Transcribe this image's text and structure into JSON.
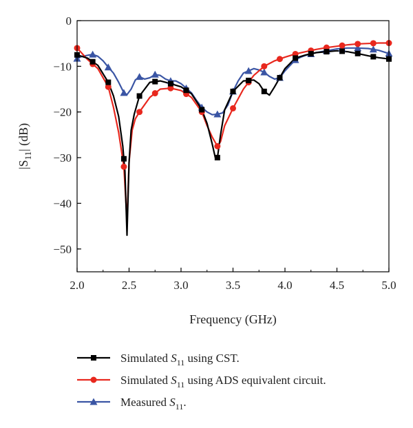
{
  "chart_data": {
    "type": "line",
    "xlabel": "Frequency (GHz)",
    "ylabel": "|S11| (dB)",
    "xlim": [
      2.0,
      5.0
    ],
    "ylim": [
      -55,
      0
    ],
    "xticks": [
      "2.0",
      "2.5",
      "3.0",
      "3.5",
      "4.0",
      "4.5",
      "5.0"
    ],
    "yticks": [
      "0",
      "−10",
      "−20",
      "−30",
      "−40",
      "−50"
    ],
    "grid": false,
    "legend_position": "bottom",
    "series": [
      {
        "name": "Simulated S11 using CST.",
        "legend_prefix": "Simulated ",
        "legend_sub": "11",
        "legend_suffix": " using CST.",
        "color": "#000000",
        "marker": "square",
        "x": [
          2.0,
          2.1,
          2.2,
          2.3,
          2.35,
          2.4,
          2.44,
          2.46,
          2.48,
          2.5,
          2.52,
          2.55,
          2.6,
          2.7,
          2.8,
          2.9,
          3.0,
          3.1,
          3.2,
          3.25,
          3.3,
          3.33,
          3.35,
          3.38,
          3.42,
          3.5,
          3.6,
          3.7,
          3.75,
          3.8,
          3.85,
          3.9,
          4.0,
          4.1,
          4.2,
          4.3,
          4.4,
          4.5,
          4.6,
          4.7,
          4.8,
          4.9,
          5.0
        ],
        "y": [
          -7.5,
          -8.2,
          -9.8,
          -13.5,
          -16.5,
          -21,
          -27.5,
          -33,
          -47,
          -31,
          -24,
          -20.5,
          -16.5,
          -13.5,
          -13.2,
          -13.8,
          -14.5,
          -16,
          -19.5,
          -22.5,
          -27,
          -30,
          -30,
          -25,
          -19.5,
          -15.5,
          -13.2,
          -13,
          -13.8,
          -15.5,
          -16.3,
          -14.5,
          -10.5,
          -8.2,
          -7.5,
          -7,
          -6.8,
          -6.6,
          -6.8,
          -7.2,
          -7.7,
          -8.1,
          -8.4
        ],
        "marker_x": [
          2.0,
          2.15,
          2.3,
          2.45,
          2.6,
          2.75,
          2.9,
          3.05,
          3.2,
          3.35,
          3.5,
          3.65,
          3.8,
          3.95,
          4.1,
          4.25,
          4.4,
          4.55,
          4.7,
          4.85,
          5.0
        ]
      },
      {
        "name": "Simulated S11 using ADS equivalent circuit.",
        "legend_prefix": "Simulated ",
        "legend_sub": "11",
        "legend_suffix": " using ADS equivalent circuit.",
        "color": "#e8281e",
        "marker": "circle",
        "x": [
          2.0,
          2.1,
          2.2,
          2.3,
          2.35,
          2.4,
          2.45,
          2.48,
          2.5,
          2.53,
          2.56,
          2.6,
          2.7,
          2.8,
          2.9,
          3.0,
          3.1,
          3.2,
          3.25,
          3.3,
          3.35,
          3.38,
          3.42,
          3.5,
          3.6,
          3.7,
          3.8,
          3.9,
          4.0,
          4.1,
          4.2,
          4.3,
          4.4,
          4.5,
          4.6,
          4.7,
          4.8,
          4.9,
          5.0
        ],
        "y": [
          -6,
          -8.5,
          -10.5,
          -14.5,
          -19,
          -24.5,
          -32,
          -44,
          -31,
          -24,
          -21.5,
          -20,
          -16.8,
          -15,
          -14.8,
          -15.3,
          -16.8,
          -20,
          -23,
          -25.5,
          -27.5,
          -26.5,
          -23,
          -19.2,
          -15,
          -12,
          -10,
          -8.8,
          -8,
          -7.3,
          -6.8,
          -6.3,
          -5.9,
          -5.6,
          -5.3,
          -5.1,
          -5,
          -4.9,
          -4.9
        ],
        "marker_x": [
          2.0,
          2.15,
          2.3,
          2.45,
          2.6,
          2.75,
          2.9,
          3.05,
          3.2,
          3.35,
          3.5,
          3.65,
          3.8,
          3.95,
          4.1,
          4.25,
          4.4,
          4.55,
          4.7,
          4.85,
          5.0
        ]
      },
      {
        "name": "Measured S11.",
        "legend_prefix": "Measured ",
        "legend_sub": "11",
        "legend_suffix": ".",
        "color": "#3a55a4",
        "marker": "triangle",
        "x": [
          2.0,
          2.05,
          2.1,
          2.15,
          2.2,
          2.25,
          2.3,
          2.35,
          2.4,
          2.45,
          2.48,
          2.52,
          2.56,
          2.6,
          2.65,
          2.7,
          2.75,
          2.8,
          2.85,
          2.9,
          2.95,
          3.0,
          3.05,
          3.1,
          3.15,
          3.2,
          3.25,
          3.3,
          3.35,
          3.4,
          3.45,
          3.5,
          3.55,
          3.6,
          3.65,
          3.7,
          3.75,
          3.8,
          3.85,
          3.9,
          3.95,
          4.0,
          4.05,
          4.1,
          4.15,
          4.2,
          4.25,
          4.3,
          4.35,
          4.4,
          4.5,
          4.6,
          4.7,
          4.8,
          4.9,
          5.0
        ],
        "y": [
          -8.3,
          -7.8,
          -7.6,
          -7.4,
          -7.8,
          -8.8,
          -10.2,
          -11.5,
          -13.5,
          -15.8,
          -16.2,
          -15,
          -13,
          -12.3,
          -12.8,
          -12.5,
          -11.8,
          -12,
          -12.8,
          -13.2,
          -13.2,
          -13.8,
          -14.8,
          -15.8,
          -17.5,
          -19,
          -20,
          -20.6,
          -20.5,
          -20.2,
          -18.5,
          -15.5,
          -13.2,
          -11.5,
          -11,
          -10.5,
          -10.8,
          -11.3,
          -12.2,
          -12.8,
          -12.5,
          -11,
          -9.8,
          -8.6,
          -8,
          -7.6,
          -7.3,
          -7,
          -6.8,
          -6.6,
          -6.2,
          -6,
          -6,
          -6.1,
          -6.5,
          -7.2
        ],
        "marker_x": [
          2.0,
          2.15,
          2.3,
          2.45,
          2.6,
          2.75,
          2.9,
          3.05,
          3.2,
          3.35,
          3.5,
          3.65,
          3.8,
          3.95,
          4.1,
          4.25,
          4.4,
          4.55,
          4.7,
          4.85,
          5.0
        ]
      }
    ]
  }
}
